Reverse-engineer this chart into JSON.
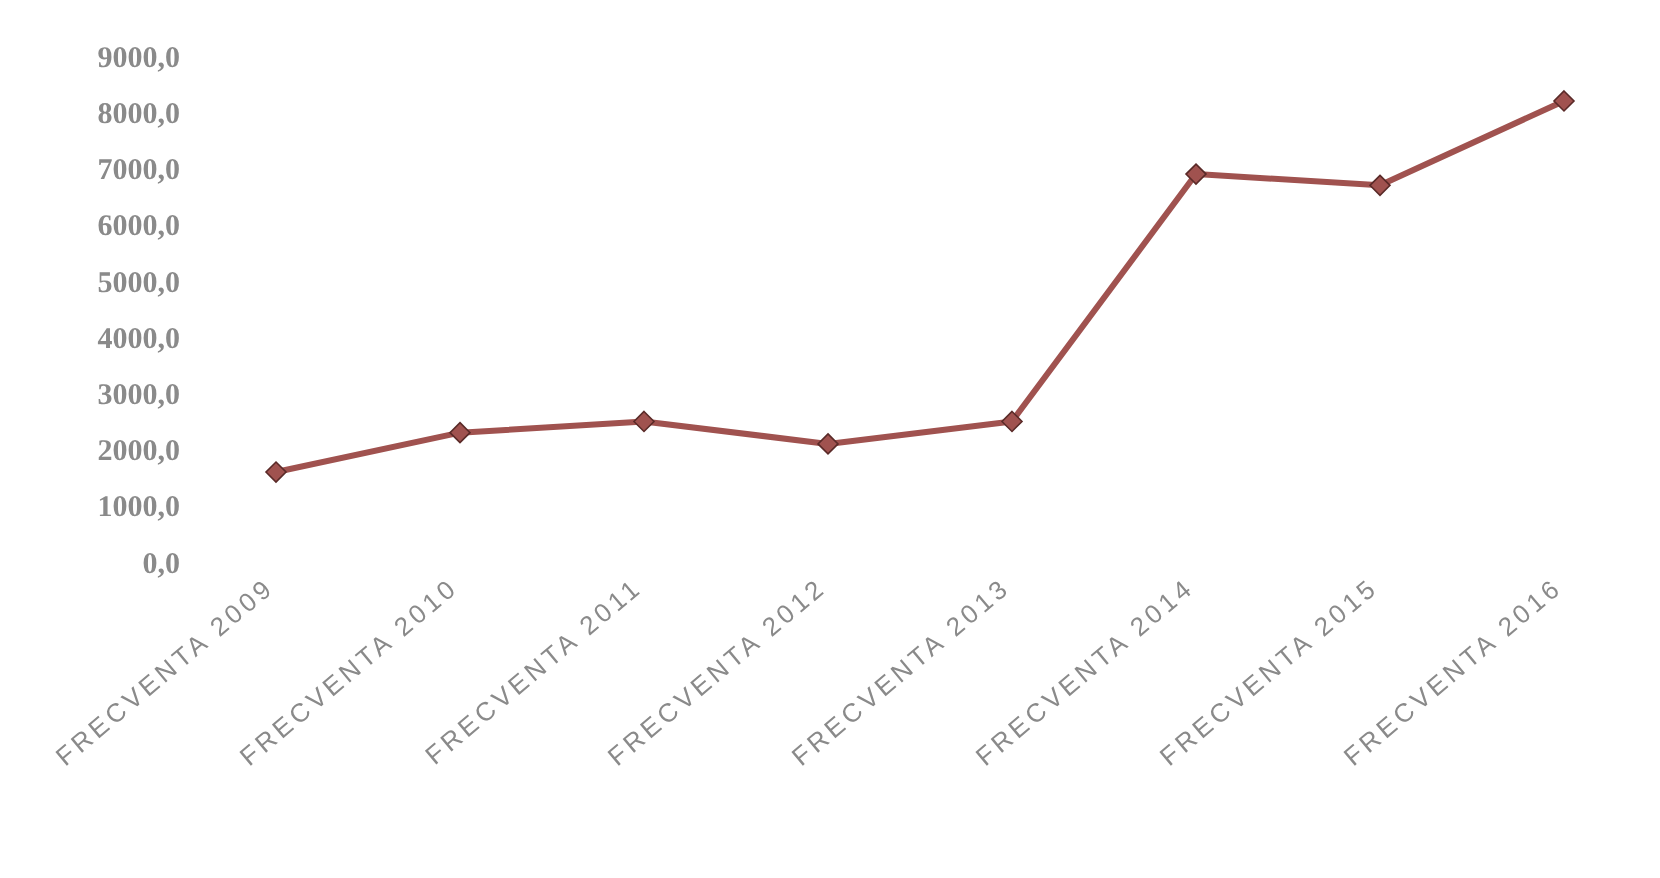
{
  "chart_data": {
    "type": "line",
    "categories": [
      "FRECVENTA 2009",
      "FRECVENTA 2010",
      "FRECVENTA 2011",
      "FRECVENTA 2012",
      "FRECVENTA 2013",
      "FRECVENTA 2014",
      "FRECVENTA 2015",
      "FRECVENTA 2016"
    ],
    "series": [
      {
        "color": "#a0524f",
        "values": [
          1600,
          2300,
          2500,
          2100,
          2500,
          6900,
          6700,
          8200
        ]
      }
    ],
    "ylim": [
      0,
      9000
    ],
    "yticks": [
      {
        "value": 0,
        "label": "0,0"
      },
      {
        "value": 1000,
        "label": "1000,0"
      },
      {
        "value": 2000,
        "label": "2000,0"
      },
      {
        "value": 3000,
        "label": "3000,0"
      },
      {
        "value": 4000,
        "label": "4000,0"
      },
      {
        "value": 5000,
        "label": "5000,0"
      },
      {
        "value": 6000,
        "label": "6000,0"
      },
      {
        "value": 7000,
        "label": "7000,0"
      },
      {
        "value": 8000,
        "label": "8000,0"
      },
      {
        "value": 9000,
        "label": "9000,0"
      }
    ],
    "marker": "diamond",
    "grid": false,
    "legend": false
  }
}
